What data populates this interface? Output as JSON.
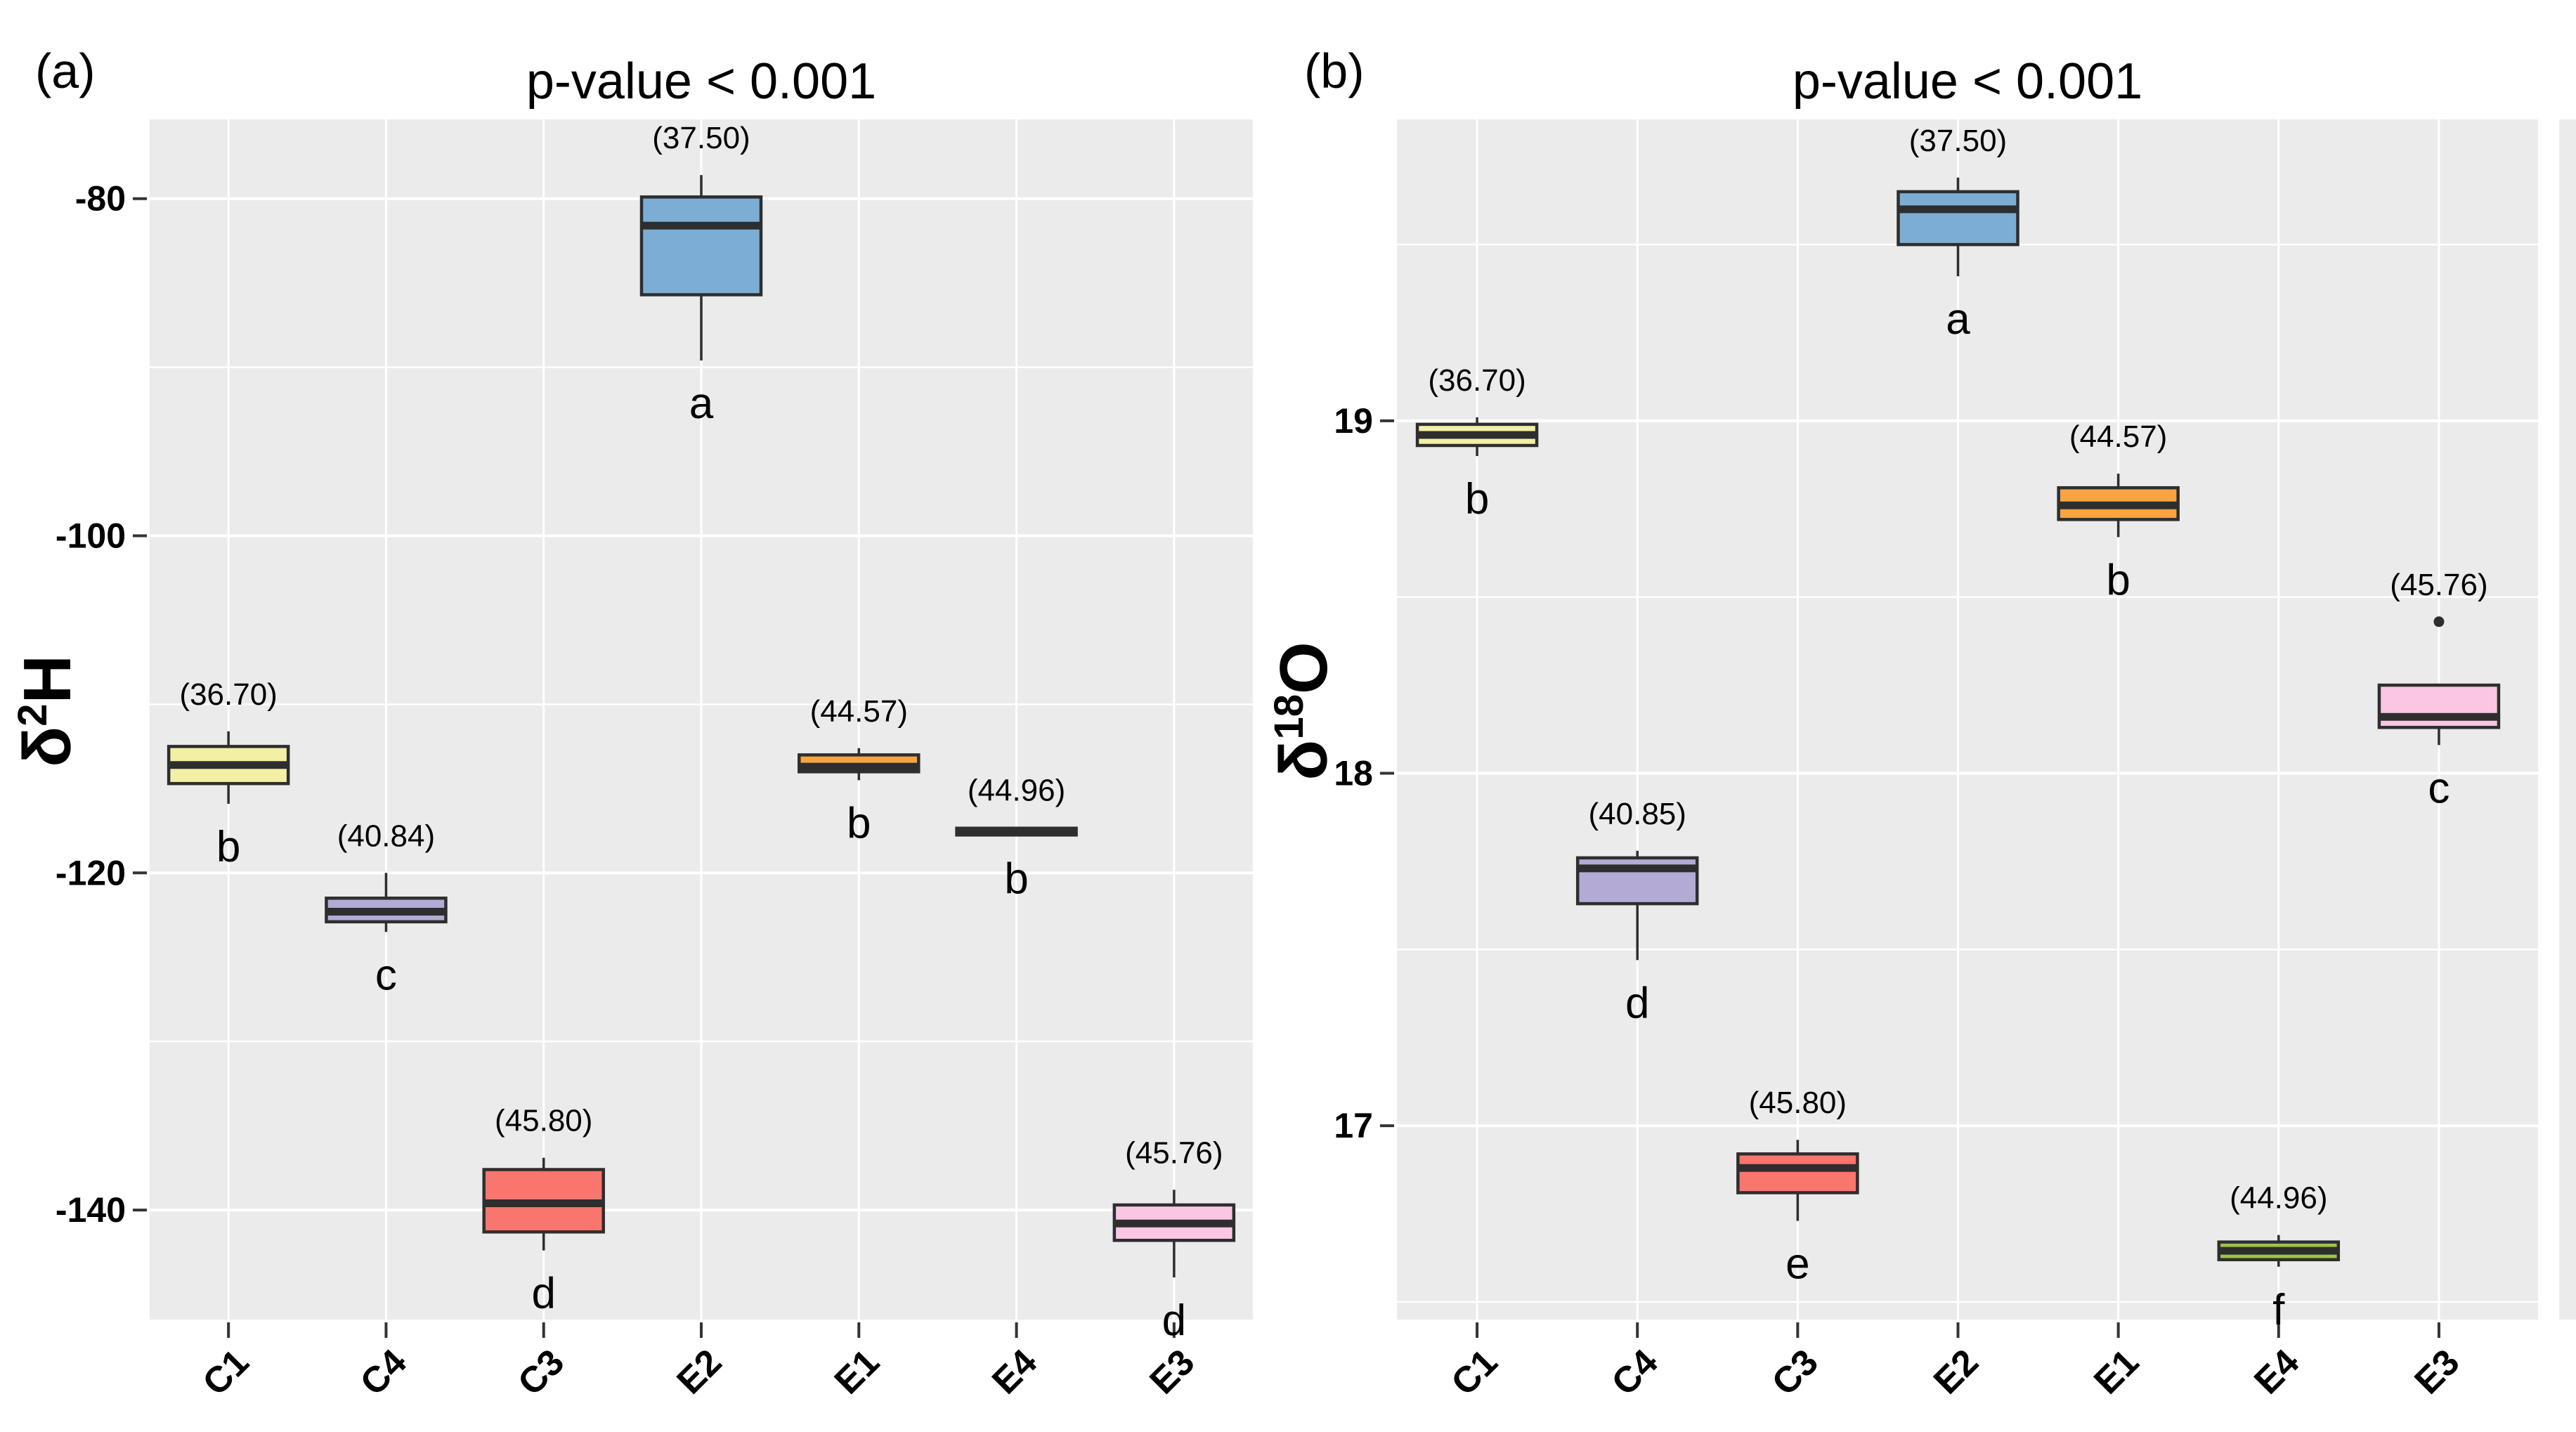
{
  "styles": {
    "figure_bg": "#FFFFFF",
    "panel_bg": "#EBEBEB",
    "grid_color": "#FFFFFF",
    "box_stroke": "#2E2E2E",
    "median_color": "#2E2E2E",
    "whisker_color": "#2E2E2E",
    "tick_color": "#333333",
    "text_color": "#000000"
  },
  "chart_data": [
    {
      "type": "boxplot",
      "panel_label": "(a)",
      "title": "p-value < 0.001",
      "ylabel_base": "δ",
      "ylabel_sup": "2",
      "ylabel_tail": "H",
      "xlabel": "",
      "categories": [
        "C1",
        "C4",
        "C3",
        "E2",
        "E1",
        "E4",
        "E3"
      ],
      "y_ticks": [
        -80,
        -100,
        -120,
        -140
      ],
      "y_tick_labels": [
        "-80",
        "-100",
        "-120",
        "-140"
      ],
      "y_minor_ticks": [
        -90,
        -110,
        -130
      ],
      "ylim": [
        -146.5,
        -75.3
      ],
      "grid": true,
      "legend": "none",
      "boxes": [
        {
          "category": "C1",
          "fill": "#F3F0A5",
          "whisker_low": -115.9,
          "q1": -114.7,
          "median": -113.6,
          "q3": -112.5,
          "whisker_high": -111.6,
          "annotation": "(36.70)",
          "letter": "b",
          "outliers": []
        },
        {
          "category": "C4",
          "fill": "#B3ABD6",
          "whisker_low": -123.5,
          "q1": -122.9,
          "median": -122.3,
          "q3": -121.5,
          "whisker_high": -120.0,
          "annotation": "(40.84)",
          "letter": "c",
          "outliers": []
        },
        {
          "category": "C3",
          "fill": "#F8766D",
          "whisker_low": -142.4,
          "q1": -141.3,
          "median": -139.6,
          "q3": -137.6,
          "whisker_high": -136.9,
          "annotation": "(45.80)",
          "letter": "d",
          "outliers": []
        },
        {
          "category": "E2",
          "fill": "#7CAED5",
          "whisker_low": -89.6,
          "q1": -85.7,
          "median": -81.6,
          "q3": -79.9,
          "whisker_high": -78.6,
          "annotation": "(37.50)",
          "letter": "a",
          "outliers": []
        },
        {
          "category": "E1",
          "fill": "#F9A342",
          "whisker_low": -114.5,
          "q1": -114.0,
          "median": -113.7,
          "q3": -113.0,
          "whisker_high": -112.6,
          "annotation": "(44.57)",
          "letter": "b",
          "outliers": []
        },
        {
          "category": "E4",
          "fill": "#3A3A3A",
          "whisker_low": -117.8,
          "q1": -117.75,
          "median": -117.55,
          "q3": -117.35,
          "whisker_high": -117.3,
          "annotation": "(44.96)",
          "letter": "b",
          "outliers": []
        },
        {
          "category": "E3",
          "fill": "#FAC6E3",
          "whisker_low": -144.0,
          "q1": -141.8,
          "median": -140.8,
          "q3": -139.7,
          "whisker_high": -138.8,
          "annotation": "(45.76)",
          "letter": "d",
          "outliers": []
        }
      ]
    },
    {
      "type": "boxplot",
      "panel_label": "(b)",
      "title": "p-value < 0.001",
      "ylabel_base": "δ",
      "ylabel_sup": "18",
      "ylabel_tail": "O",
      "xlabel": "",
      "categories": [
        "C1",
        "C4",
        "C3",
        "E2",
        "E1",
        "E4",
        "E3"
      ],
      "y_ticks": [
        19,
        18,
        17
      ],
      "y_tick_labels": [
        "19",
        "18",
        "17"
      ],
      "y_minor_ticks": [
        19.5,
        18.5,
        17.5,
        16.5
      ],
      "ylim": [
        16.45,
        19.855
      ],
      "grid": true,
      "legend": "none",
      "boxes": [
        {
          "category": "C1",
          "fill": "#F3F0A5",
          "whisker_low": 18.9,
          "q1": 18.93,
          "median": 18.96,
          "q3": 18.99,
          "whisker_high": 19.01,
          "annotation": "(36.70)",
          "letter": "b",
          "outliers": []
        },
        {
          "category": "C4",
          "fill": "#B3ABD6",
          "whisker_low": 17.47,
          "q1": 17.63,
          "median": 17.73,
          "q3": 17.76,
          "whisker_high": 17.78,
          "annotation": "(40.85)",
          "letter": "d",
          "outliers": []
        },
        {
          "category": "C3",
          "fill": "#F8766D",
          "whisker_low": 16.73,
          "q1": 16.81,
          "median": 16.88,
          "q3": 16.92,
          "whisker_high": 16.96,
          "annotation": "(45.80)",
          "letter": "e",
          "outliers": []
        },
        {
          "category": "E2",
          "fill": "#7CAED5",
          "whisker_low": 19.41,
          "q1": 19.5,
          "median": 19.6,
          "q3": 19.65,
          "whisker_high": 19.69,
          "annotation": "(37.50)",
          "letter": "a",
          "outliers": []
        },
        {
          "category": "E1",
          "fill": "#F9A342",
          "whisker_low": 18.67,
          "q1": 18.72,
          "median": 18.76,
          "q3": 18.81,
          "whisker_high": 18.85,
          "annotation": "(44.57)",
          "letter": "b",
          "outliers": []
        },
        {
          "category": "E4",
          "fill": "#9DC449",
          "whisker_low": 16.6,
          "q1": 16.62,
          "median": 16.645,
          "q3": 16.67,
          "whisker_high": 16.69,
          "annotation": "(44.96)",
          "letter": "f",
          "outliers": []
        },
        {
          "category": "E3",
          "fill": "#FAC6E3",
          "whisker_low": 18.08,
          "q1": 18.13,
          "median": 18.16,
          "q3": 18.25,
          "whisker_high": null,
          "annotation": "(45.76)",
          "letter": "c",
          "outliers": [
            18.43
          ]
        }
      ]
    }
  ]
}
